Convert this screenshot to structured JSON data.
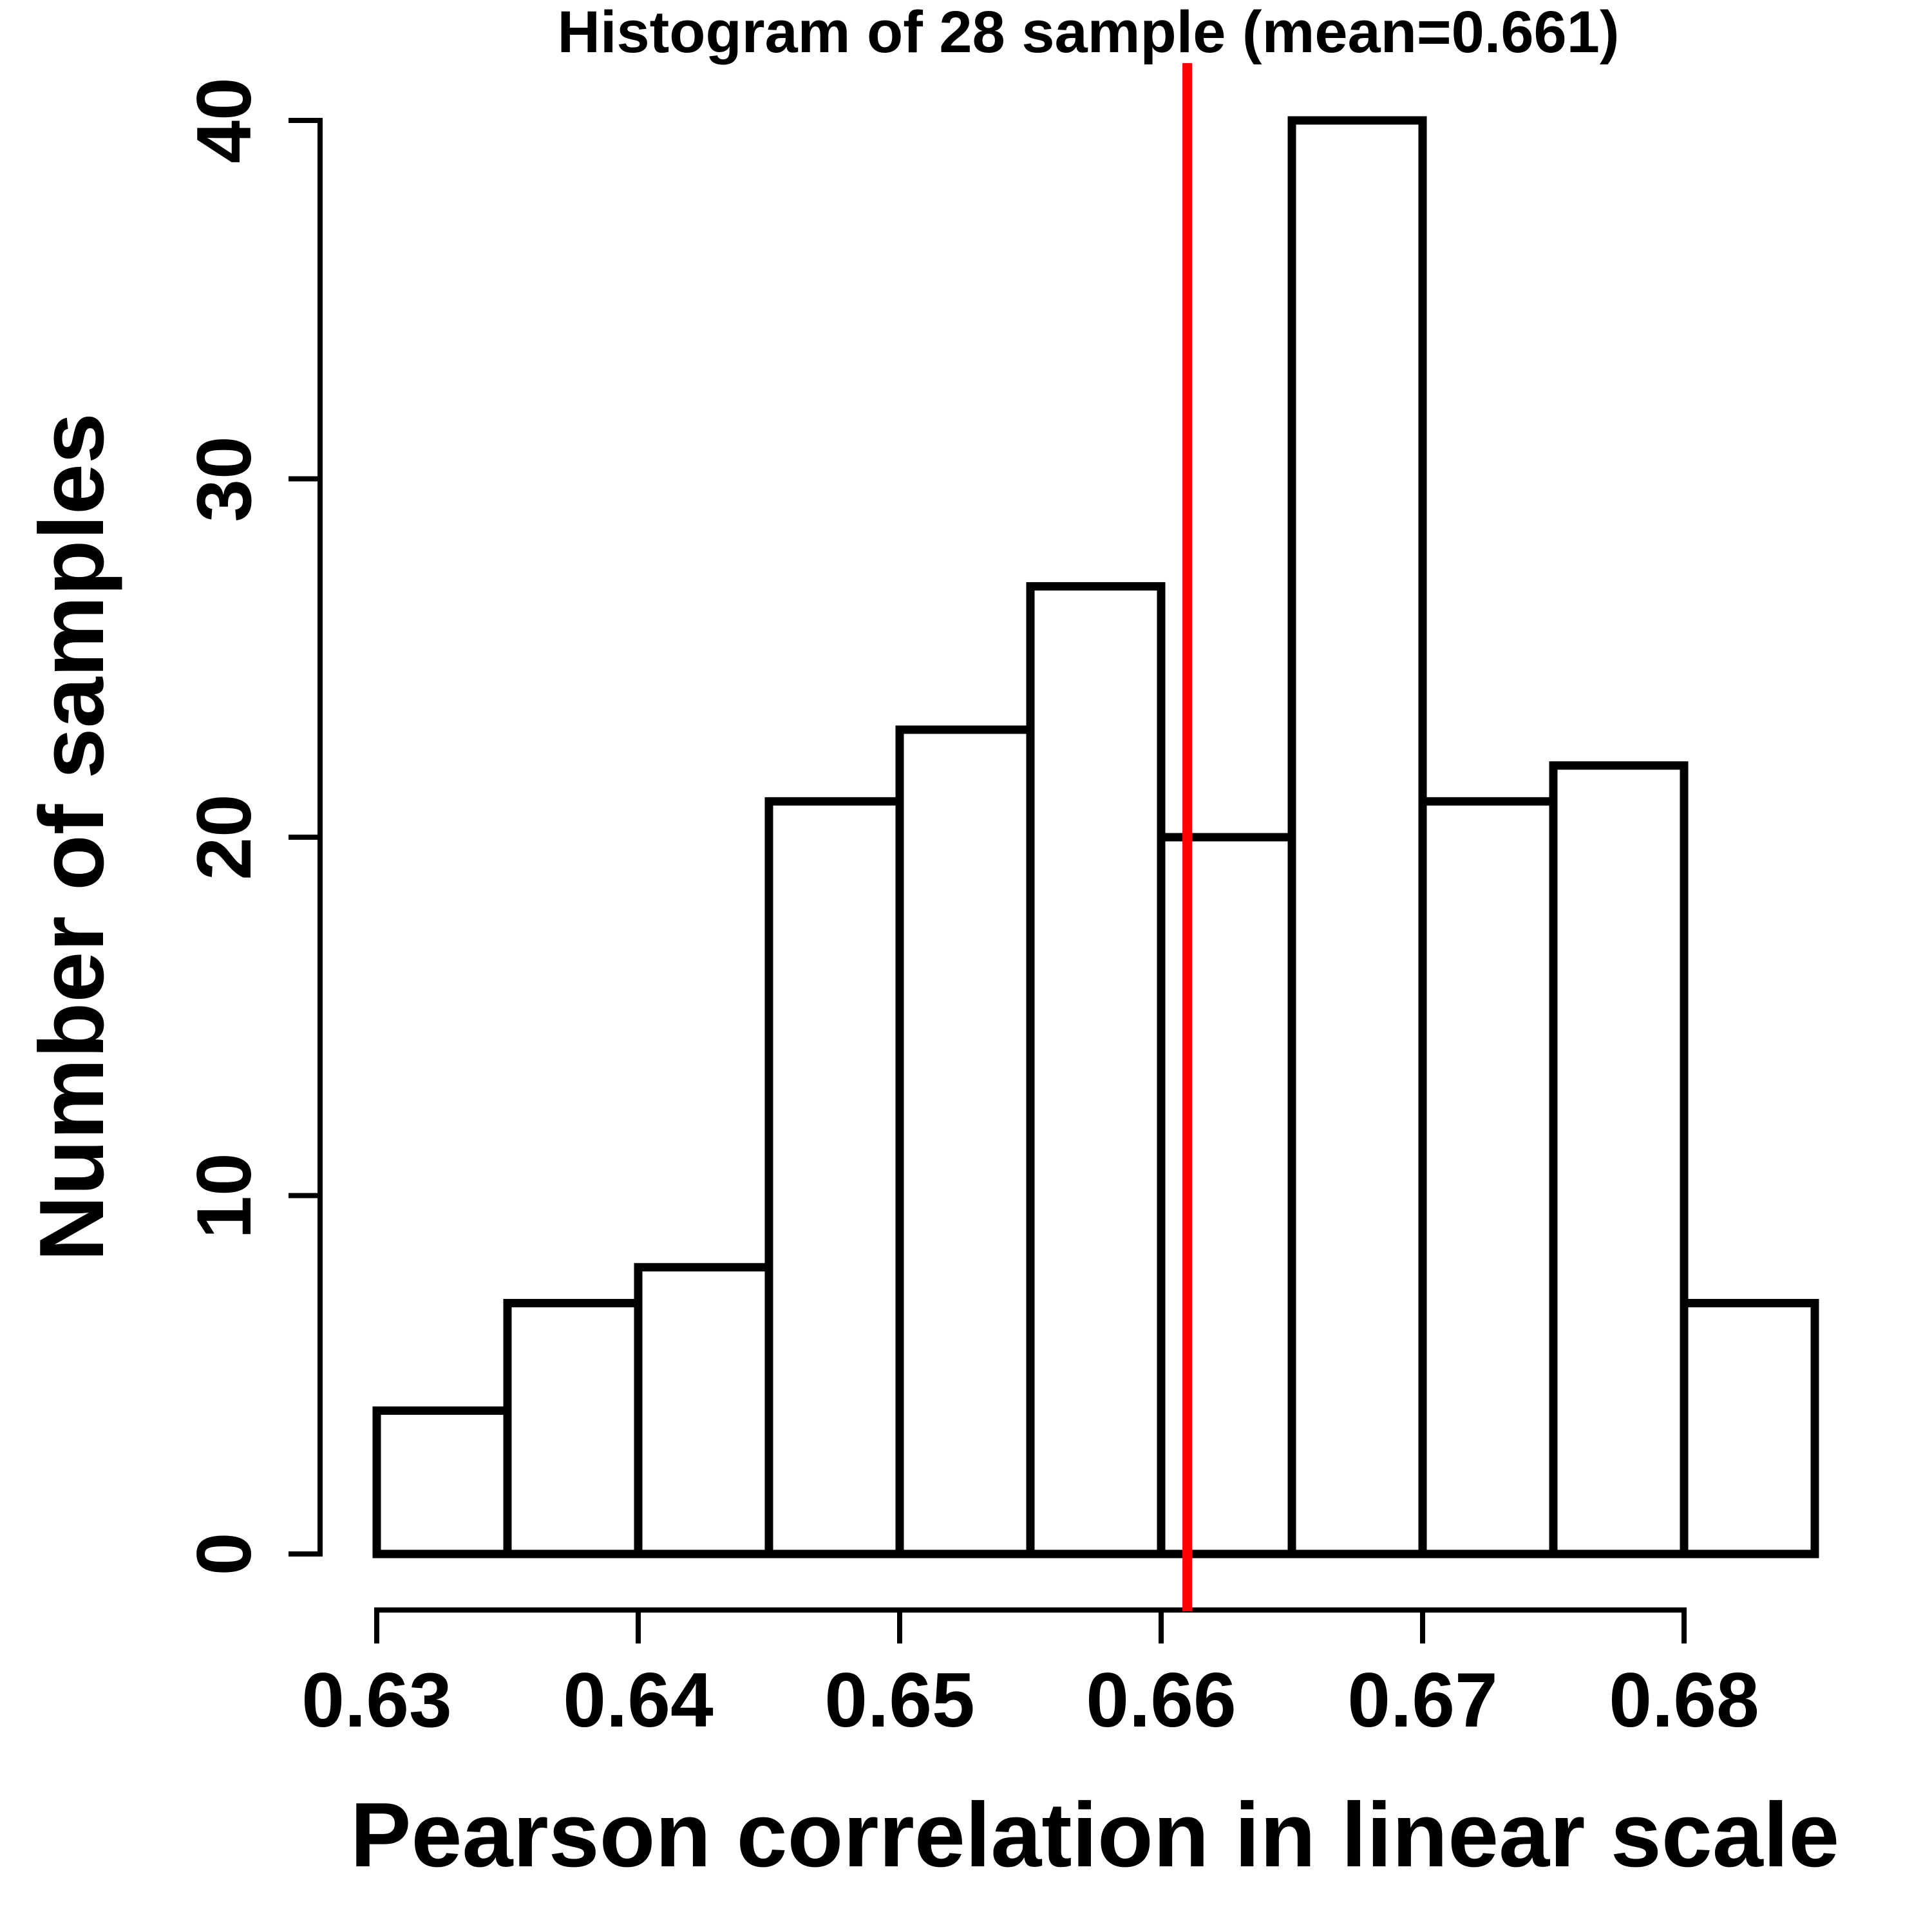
{
  "chart_data": {
    "type": "bar",
    "subtype": "histogram",
    "title": "Histogram of 28 sample (mean=0.661)",
    "xlabel": "Pearson correlation in linear scale",
    "ylabel": "Number of samples",
    "bin_edges": [
      0.63,
      0.635,
      0.64,
      0.645,
      0.65,
      0.655,
      0.66,
      0.665,
      0.67,
      0.675,
      0.68,
      0.685
    ],
    "counts": [
      4,
      7,
      8,
      21,
      23,
      27,
      20,
      40,
      21,
      22,
      7
    ],
    "x_ticks": [
      {
        "value": 0.63,
        "label": "0.63"
      },
      {
        "value": 0.64,
        "label": "0.64"
      },
      {
        "value": 0.65,
        "label": "0.65"
      },
      {
        "value": 0.66,
        "label": "0.66"
      },
      {
        "value": 0.67,
        "label": "0.67"
      },
      {
        "value": 0.68,
        "label": "0.68"
      }
    ],
    "y_ticks": [
      {
        "value": 0,
        "label": "0"
      },
      {
        "value": 10,
        "label": "10"
      },
      {
        "value": 20,
        "label": "20"
      },
      {
        "value": 30,
        "label": "30"
      },
      {
        "value": 40,
        "label": "40"
      }
    ],
    "xlim": [
      0.63,
      0.685
    ],
    "ylim": [
      0,
      40
    ],
    "mean_line": {
      "value": 0.661,
      "color": "#FF0000"
    },
    "bar_fill": "#FFFFFF",
    "bar_stroke": "#000000",
    "axis_color": "#000000",
    "grid": false,
    "legend": null
  }
}
